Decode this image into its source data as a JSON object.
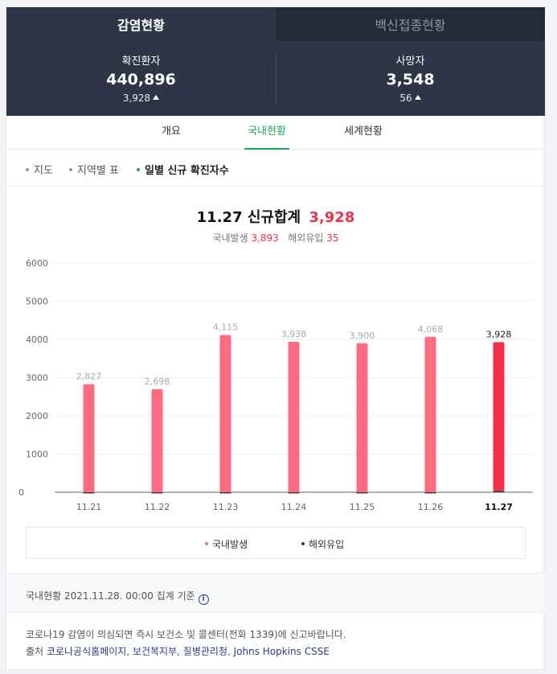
{
  "tabs": {
    "active": "감염현황",
    "inactive": "백신접종현황"
  },
  "stats": [
    {
      "label": "확진환자",
      "value": "440,896",
      "delta": "3,928"
    },
    {
      "label": "사망자",
      "value": "3,548",
      "delta": "56"
    }
  ],
  "subtabs": [
    "개요",
    "국내현황",
    "세계현황"
  ],
  "chips": [
    "지도",
    "지역별 표",
    "일별 신규 확진자수"
  ],
  "summary": {
    "date": "11.27",
    "label": "신규합계",
    "total": "3,928",
    "domestic_label": "국내발생",
    "domestic": "3,893",
    "overseas_label": "해외유입",
    "overseas": "35"
  },
  "chart_data": {
    "type": "bar",
    "categories": [
      "11.21",
      "11.22",
      "11.23",
      "11.24",
      "11.25",
      "11.26",
      "11.27"
    ],
    "series": [
      {
        "name": "국내발생",
        "values": [
          2827,
          2698,
          4115,
          3938,
          3900,
          4068,
          3893
        ]
      },
      {
        "name": "해외유입",
        "values": [
          0,
          0,
          0,
          0,
          0,
          0,
          35
        ]
      }
    ],
    "totals": [
      2827,
      2698,
      4115,
      3938,
      3900,
      4068,
      3928
    ],
    "total_labels": [
      "2,827",
      "2,698",
      "4,115",
      "3,938",
      "3,900",
      "4,068",
      "3,928"
    ],
    "yticks": [
      0,
      1000,
      2000,
      3000,
      4000,
      5000,
      6000
    ],
    "ylim": [
      0,
      6000
    ],
    "stacked": true,
    "grid": true,
    "highlight_index": 6,
    "colors": {
      "domestic": "#ff6b81",
      "domestic_highlight": "#f4304f",
      "overseas": "#3a3a3a"
    },
    "legend_position": "bottom"
  },
  "legend": {
    "domestic": "국내발생",
    "overseas": "해외유입"
  },
  "footer": {
    "basis": "국내현황 2021.11.28. 00:00 집계 기준",
    "notice": "코로나19 감염이 의심되면 즉시 보건소 및 콜센터(전화 1339)에 신고바랍니다.",
    "source_label": "출처",
    "sources": [
      "코로나공식홈페이지",
      "보건복지부",
      "질병관리청",
      "Johns Hopkins CSSE"
    ]
  }
}
